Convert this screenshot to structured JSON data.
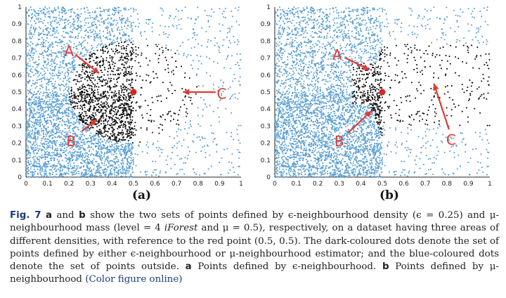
{
  "figure": {
    "panels": [
      {
        "id": "a",
        "label": "(a)"
      },
      {
        "id": "b",
        "label": "(b)"
      }
    ],
    "tick_labels_x": [
      "0",
      "0.1",
      "0.2",
      "0.3",
      "0.4",
      "0.5",
      "0.6",
      "0.7",
      "0.8",
      "0.9",
      "1"
    ],
    "tick_labels_y": [
      "0",
      "0.1",
      "0.2",
      "0.3",
      "0.4",
      "0.5",
      "0.6",
      "0.7",
      "0.8",
      "0.9",
      "1"
    ],
    "annotations": [
      "A",
      "B",
      "C"
    ],
    "colors": {
      "blue": "#5a9fd4",
      "dark": "#111111",
      "red_point": "#d7261e",
      "arrow": "#e03a30"
    },
    "reference_point": [
      0.5,
      0.5
    ]
  },
  "caption": {
    "fig_label": "Fig. 7",
    "part1": " and ",
    "part2": " show the two sets of points defined by ϵ-neighbourhood density (ϵ = 0.25) and μ-neighbourhood mass (level = 4 ",
    "iforest": "iForest",
    "part3": " and μ = 0.5), respectively, on a dataset having three areas of different densities, with reference to the red point (0.5, 0.5). The dark-coloured dots denote the set of points defined by either ϵ-neighbourhood or μ-neighbourhood estimator; and the blue-coloured dots denote the set of points outside. ",
    "a_bold": "a",
    "a_text": " Points defined by ϵ-neighbourhood. ",
    "b_bold": "b",
    "b_text": " Points defined by μ-neighbourhood ",
    "link": "(Color figure online)"
  }
}
